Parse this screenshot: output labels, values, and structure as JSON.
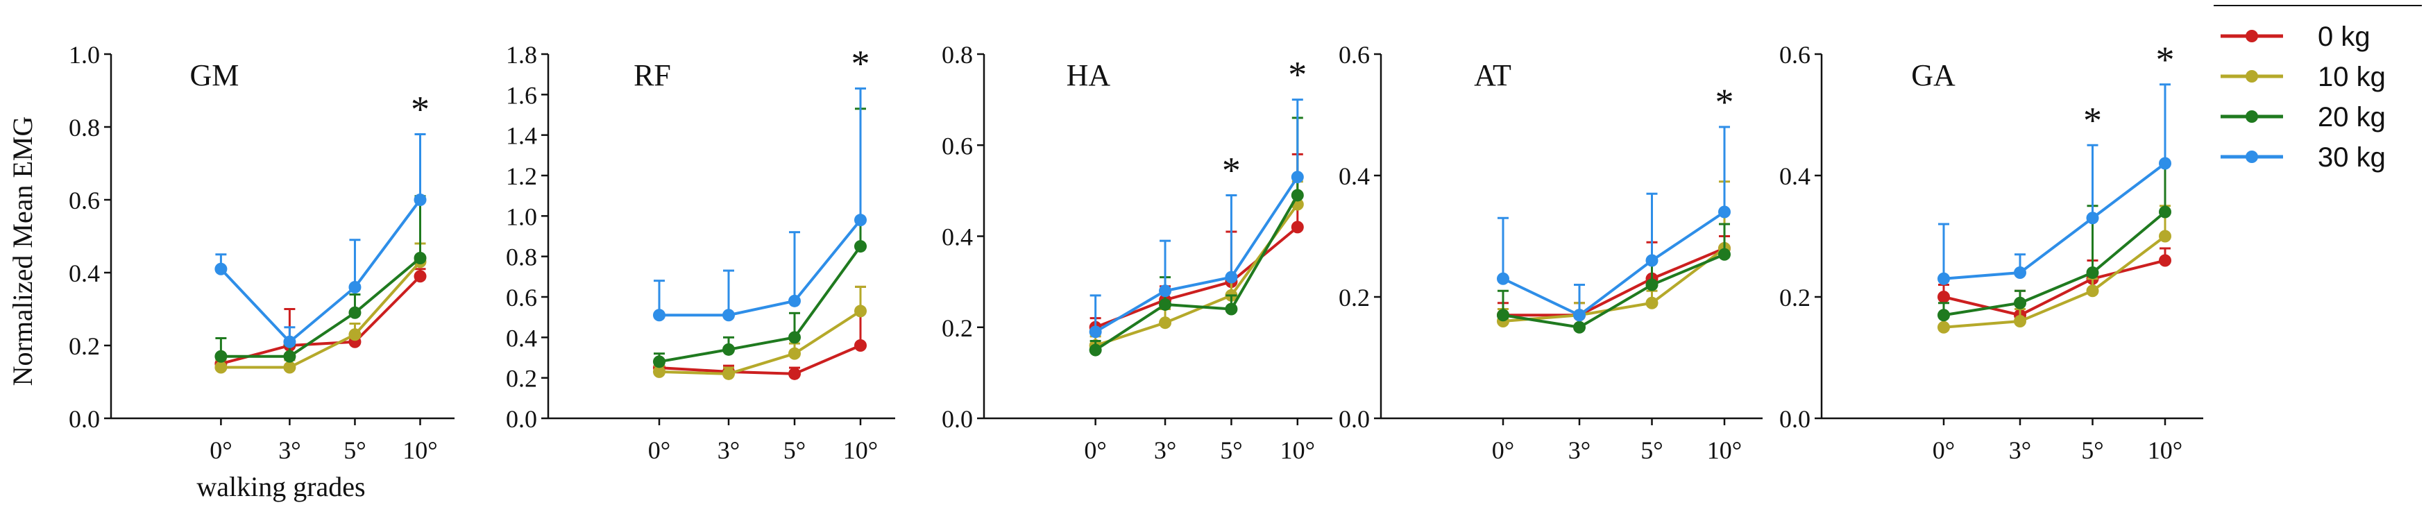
{
  "figure": {
    "ylabel": "Normalized Mean EMG",
    "xlabel": "walking grades"
  },
  "legend": {
    "position": "right",
    "items": [
      {
        "label": "0 kg",
        "color": "#cc1f1f"
      },
      {
        "label": "10 kg",
        "color": "#b5a92a"
      },
      {
        "label": "20 kg",
        "color": "#1f7a1f"
      },
      {
        "label": "30 kg",
        "color": "#2e8ee8"
      }
    ]
  },
  "chart_data": [
    {
      "type": "line",
      "title": "GM",
      "categories": [
        "0°",
        "3°",
        "5°",
        "10°"
      ],
      "ylim": [
        0,
        1.0
      ],
      "yticks": [
        "0.0",
        "0.2",
        "0.4",
        "0.6",
        "0.8",
        "1.0"
      ],
      "significance": [
        "",
        "",
        "",
        "*"
      ],
      "series": [
        {
          "name": "0 kg",
          "values": [
            0.15,
            0.2,
            0.21,
            0.39
          ],
          "errors": [
            0.02,
            0.1,
            0.02,
            0.02
          ]
        },
        {
          "name": "10 kg",
          "values": [
            0.14,
            0.14,
            0.23,
            0.43
          ],
          "errors": [
            0.02,
            0.02,
            0.03,
            0.05
          ]
        },
        {
          "name": "20 kg",
          "values": [
            0.17,
            0.17,
            0.29,
            0.44
          ],
          "errors": [
            0.05,
            0.03,
            0.05,
            0.17
          ]
        },
        {
          "name": "30 kg",
          "values": [
            0.41,
            0.21,
            0.36,
            0.6
          ],
          "errors": [
            0.04,
            0.04,
            0.13,
            0.18
          ]
        }
      ]
    },
    {
      "type": "line",
      "title": "RF",
      "categories": [
        "0°",
        "3°",
        "5°",
        "10°"
      ],
      "ylim": [
        0,
        1.8
      ],
      "yticks": [
        "0.0",
        "0.2",
        "0.4",
        "0.6",
        "0.8",
        "1.0",
        "1.2",
        "1.4",
        "1.6",
        "1.8"
      ],
      "significance": [
        "",
        "",
        "",
        "*"
      ],
      "series": [
        {
          "name": "0 kg",
          "values": [
            0.25,
            0.23,
            0.22,
            0.36
          ],
          "errors": [
            0.03,
            0.03,
            0.03,
            0.29
          ]
        },
        {
          "name": "10 kg",
          "values": [
            0.23,
            0.22,
            0.32,
            0.53
          ],
          "errors": [
            0.03,
            0.03,
            0.05,
            0.12
          ]
        },
        {
          "name": "20 kg",
          "values": [
            0.28,
            0.34,
            0.4,
            0.85
          ],
          "errors": [
            0.04,
            0.06,
            0.12,
            0.68
          ]
        },
        {
          "name": "30 kg",
          "values": [
            0.51,
            0.51,
            0.58,
            0.98
          ],
          "errors": [
            0.17,
            0.22,
            0.34,
            0.65
          ]
        }
      ]
    },
    {
      "type": "line",
      "title": "HA",
      "categories": [
        "0°",
        "3°",
        "5°",
        "10°"
      ],
      "ylim": [
        0,
        0.8
      ],
      "yticks": [
        "0.0",
        "0.2",
        "0.4",
        "0.6",
        "0.8"
      ],
      "significance": [
        "",
        "",
        "*",
        "*"
      ],
      "series": [
        {
          "name": "0 kg",
          "values": [
            0.2,
            0.26,
            0.3,
            0.42
          ],
          "errors": [
            0.02,
            0.03,
            0.11,
            0.16
          ]
        },
        {
          "name": "10 kg",
          "values": [
            0.16,
            0.21,
            0.27,
            0.47
          ],
          "errors": [
            0.02,
            0.03,
            0.04,
            0.05
          ]
        },
        {
          "name": "20 kg",
          "values": [
            0.15,
            0.25,
            0.24,
            0.49
          ],
          "errors": [
            0.02,
            0.06,
            0.03,
            0.17
          ]
        },
        {
          "name": "30 kg",
          "values": [
            0.19,
            0.28,
            0.31,
            0.53
          ],
          "errors": [
            0.08,
            0.11,
            0.18,
            0.17
          ]
        }
      ]
    },
    {
      "type": "line",
      "title": "AT",
      "categories": [
        "0°",
        "3°",
        "5°",
        "10°"
      ],
      "ylim": [
        0,
        0.6
      ],
      "yticks": [
        "0.0",
        "0.2",
        "0.4",
        "0.6"
      ],
      "significance": [
        "",
        "",
        "",
        "*"
      ],
      "series": [
        {
          "name": "0 kg",
          "values": [
            0.17,
            0.17,
            0.23,
            0.28
          ],
          "errors": [
            0.02,
            0.02,
            0.06,
            0.02
          ]
        },
        {
          "name": "10 kg",
          "values": [
            0.16,
            0.17,
            0.19,
            0.28
          ],
          "errors": [
            0.02,
            0.02,
            0.02,
            0.11
          ]
        },
        {
          "name": "20 kg",
          "values": [
            0.17,
            0.15,
            0.22,
            0.27
          ],
          "errors": [
            0.04,
            0.02,
            0.04,
            0.05
          ]
        },
        {
          "name": "30 kg",
          "values": [
            0.23,
            0.17,
            0.26,
            0.34
          ],
          "errors": [
            0.1,
            0.05,
            0.11,
            0.14
          ]
        }
      ]
    },
    {
      "type": "line",
      "title": "GA",
      "categories": [
        "0°",
        "3°",
        "5°",
        "10°"
      ],
      "ylim": [
        0,
        0.6
      ],
      "yticks": [
        "0.0",
        "0.2",
        "0.4",
        "0.6"
      ],
      "significance": [
        "",
        "",
        "*",
        "*"
      ],
      "series": [
        {
          "name": "0 kg",
          "values": [
            0.2,
            0.17,
            0.23,
            0.26
          ],
          "errors": [
            0.02,
            0.04,
            0.03,
            0.02
          ]
        },
        {
          "name": "10 kg",
          "values": [
            0.15,
            0.16,
            0.21,
            0.3
          ],
          "errors": [
            0.02,
            0.02,
            0.02,
            0.05
          ]
        },
        {
          "name": "20 kg",
          "values": [
            0.17,
            0.19,
            0.24,
            0.34
          ],
          "errors": [
            0.02,
            0.02,
            0.11,
            0.08
          ]
        },
        {
          "name": "30 kg",
          "values": [
            0.23,
            0.24,
            0.33,
            0.42
          ],
          "errors": [
            0.09,
            0.03,
            0.12,
            0.13
          ]
        }
      ]
    }
  ]
}
